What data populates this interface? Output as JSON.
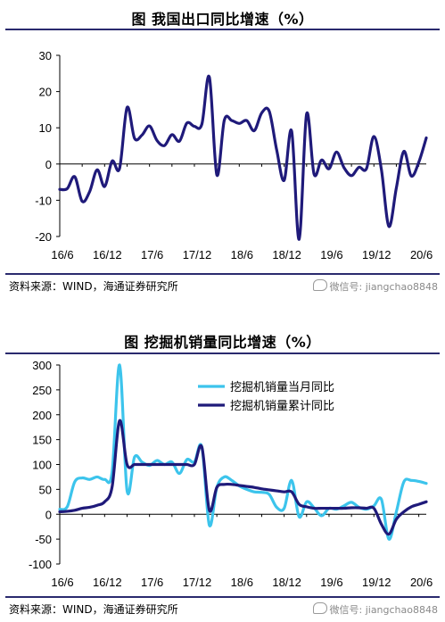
{
  "charts": [
    {
      "title": "图  我国出口同比增速（%）",
      "source": "资料来源：WIND，海通证券研究所",
      "watermark": "微信号: jiangchao8848",
      "chart_data": {
        "type": "line",
        "title": "图  我国出口同比增速（%）",
        "xlabel": "",
        "ylabel": "",
        "ylim": [
          -20,
          30
        ],
        "yticks": [
          "30",
          "20",
          "10",
          "0",
          "-10",
          "-20"
        ],
        "xticks": [
          "16/6",
          "16/12",
          "17/6",
          "17/12",
          "18/6",
          "18/12",
          "19/6",
          "19/12",
          "20/6"
        ],
        "grid": false,
        "series": [
          {
            "name": "",
            "color": "#1f1a7a",
            "x": [
              "16/6",
              "16/7",
              "16/8",
              "16/9",
              "16/10",
              "16/11",
              "16/12",
              "17/1",
              "17/2",
              "17/3",
              "17/4",
              "17/5",
              "17/6",
              "17/7",
              "17/8",
              "17/9",
              "17/10",
              "17/11",
              "17/12",
              "18/1",
              "18/2",
              "18/3",
              "18/4",
              "18/5",
              "18/6",
              "18/7",
              "18/8",
              "18/9",
              "18/10",
              "18/11",
              "18/12",
              "19/1",
              "19/2",
              "19/3",
              "19/4",
              "19/5",
              "19/6",
              "19/7",
              "19/8",
              "19/9",
              "19/10",
              "19/11",
              "19/12",
              "20/1",
              "20/2",
              "20/3",
              "20/4",
              "20/5",
              "20/6",
              "20/7"
            ],
            "values": [
              -7.0,
              -6.8,
              -3.5,
              -10.3,
              -7.6,
              -1.6,
              -6.2,
              0.8,
              -1.2,
              15.6,
              7.1,
              8.0,
              10.5,
              6.5,
              5.1,
              8.1,
              6.3,
              11.3,
              10.4,
              11.0,
              24.0,
              -3.0,
              12.1,
              12.0,
              11.2,
              12.0,
              9.2,
              14.1,
              14.6,
              3.9,
              -4.5,
              9.1,
              -20.8,
              13.8,
              -2.8,
              1.1,
              -1.3,
              3.3,
              -1.0,
              -3.2,
              -0.9,
              -1.3,
              7.6,
              -1.5,
              -17.2,
              -6.6,
              3.5,
              -3.3,
              0.5,
              7.2
            ]
          }
        ]
      }
    },
    {
      "title": "图  挖掘机销量同比增速（%）",
      "source": "资料来源：WIND，海通证券研究所",
      "watermark": "微信号: jiangchao8848",
      "chart_data": {
        "type": "line",
        "title": "图  挖掘机销量同比增速（%）",
        "xlabel": "",
        "ylabel": "",
        "ylim": [
          -100,
          300
        ],
        "yticks": [
          "300",
          "250",
          "200",
          "150",
          "100",
          "50",
          "0",
          "-50",
          "-100"
        ],
        "xticks": [
          "16/6",
          "16/12",
          "17/6",
          "17/12",
          "18/6",
          "18/12",
          "19/6",
          "19/12",
          "20/6"
        ],
        "grid": false,
        "legend": "top-right",
        "series": [
          {
            "name": "挖掘机销量当月同比",
            "color": "#3cc4ec",
            "x": [
              "16/6",
              "16/7",
              "16/8",
              "16/9",
              "16/10",
              "16/11",
              "16/12",
              "17/1",
              "17/2",
              "17/3",
              "17/4",
              "17/5",
              "17/6",
              "17/7",
              "17/8",
              "17/9",
              "17/10",
              "17/11",
              "17/12",
              "18/1",
              "18/2",
              "18/3",
              "18/4",
              "18/5",
              "18/6",
              "18/7",
              "18/8",
              "18/9",
              "18/10",
              "18/11",
              "18/12",
              "19/1",
              "19/2",
              "19/3",
              "19/4",
              "19/5",
              "19/6",
              "19/7",
              "19/8",
              "19/9",
              "19/10",
              "19/11",
              "19/12",
              "20/1",
              "20/2",
              "20/3",
              "20/4",
              "20/5",
              "20/6",
              "20/7"
            ],
            "values": [
              10,
              15,
              65,
              73,
              70,
              75,
              70,
              85,
              300,
              47,
              115,
              105,
              98,
              108,
              100,
              105,
              82,
              110,
              105,
              135,
              -22,
              54,
              75,
              68,
              57,
              50,
              45,
              44,
              40,
              14,
              12,
              68,
              -5,
              25,
              13,
              -3,
              12,
              10,
              17,
              24,
              14,
              10,
              17,
              30,
              -50,
              5,
              65,
              68,
              66,
              62
            ]
          },
          {
            "name": "挖掘机销量累计同比",
            "color": "#1f1a7a",
            "x": [
              "16/6",
              "16/7",
              "16/8",
              "16/9",
              "16/10",
              "16/11",
              "16/12",
              "17/1",
              "17/2",
              "17/3",
              "17/4",
              "17/5",
              "17/6",
              "17/7",
              "17/8",
              "17/9",
              "17/10",
              "17/11",
              "17/12",
              "18/1",
              "18/2",
              "18/3",
              "18/4",
              "18/5",
              "18/6",
              "18/7",
              "18/8",
              "18/9",
              "18/10",
              "18/11",
              "18/12",
              "19/1",
              "19/2",
              "19/3",
              "19/4",
              "19/5",
              "19/6",
              "19/7",
              "19/8",
              "19/9",
              "19/10",
              "19/11",
              "19/12",
              "20/1",
              "20/2",
              "20/3",
              "20/4",
              "20/5",
              "20/6",
              "20/7"
            ],
            "values": [
              5,
              6,
              8,
              12,
              14,
              18,
              25,
              55,
              188,
              100,
              100,
              100,
              100,
              100,
              100,
              100,
              100,
              100,
              100,
              135,
              8,
              54,
              60,
              60,
              58,
              56,
              54,
              51,
              49,
              47,
              45,
              45,
              20,
              15,
              12,
              12,
              12,
              12,
              12,
              13,
              13,
              12,
              12,
              -20,
              -40,
              -10,
              5,
              15,
              20,
              25
            ]
          }
        ]
      }
    }
  ]
}
